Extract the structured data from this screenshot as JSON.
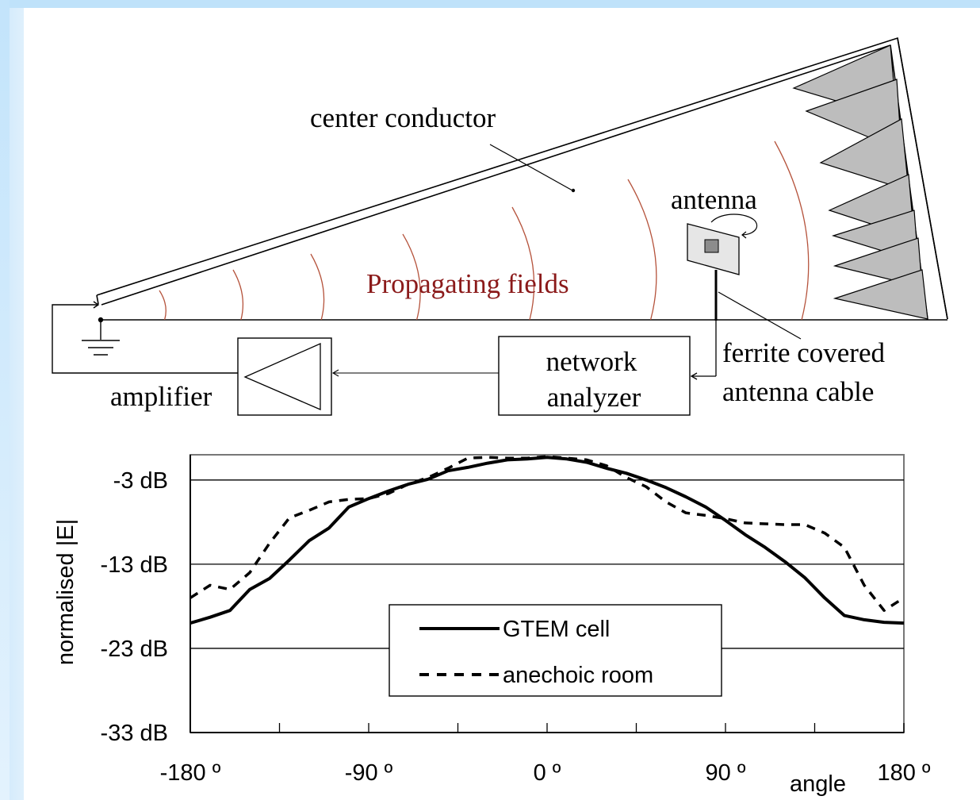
{
  "diagram": {
    "labels": {
      "center_conductor": "center conductor",
      "antenna": "antenna",
      "propagating_fields": "Propagating fields",
      "network_analyzer_line1": "network",
      "network_analyzer_line2": "analyzer",
      "amplifier": "amplifier",
      "ferrite_line1": "ferrite covered",
      "ferrite_line2": "antenna cable"
    },
    "colors": {
      "wavefront": "#b5533c",
      "propagating_text": "#8b1a1a",
      "absorber_fill": "#bdbdbd",
      "line": "#000000"
    }
  },
  "chart_data": {
    "type": "line",
    "xlabel": "angle",
    "ylabel": "normalised |E|",
    "xlim": [
      -180,
      180
    ],
    "ylim": [
      -33,
      0
    ],
    "x_ticks": [
      -180,
      -135,
      -90,
      -45,
      0,
      45,
      90,
      135,
      180
    ],
    "x_tick_labels": [
      "-180 º",
      "-90 º",
      "0 º",
      "90 º",
      "180 º"
    ],
    "x_tick_label_values": [
      -180,
      -90,
      0,
      90,
      180
    ],
    "y_ticks": [
      -3,
      -13,
      -23,
      -33
    ],
    "y_tick_labels": [
      "-3 dB",
      "-13 dB",
      "-23 dB",
      "-33 dB"
    ],
    "grid": true,
    "legend_position": "center-bottom",
    "series": [
      {
        "name": "GTEM cell",
        "style": "solid",
        "x": [
          -180,
          -170,
          -160,
          -150,
          -140,
          -130,
          -120,
          -110,
          -100,
          -90,
          -80,
          -70,
          -60,
          -50,
          -40,
          -30,
          -20,
          -10,
          0,
          10,
          20,
          30,
          40,
          50,
          60,
          70,
          80,
          90,
          100,
          110,
          120,
          130,
          140,
          150,
          160,
          170,
          180
        ],
        "y": [
          -20.0,
          -19.3,
          -18.5,
          -16.0,
          -14.7,
          -12.5,
          -10.2,
          -8.7,
          -6.2,
          -5.2,
          -4.3,
          -3.5,
          -2.9,
          -1.9,
          -1.5,
          -1.0,
          -0.6,
          -0.5,
          -0.3,
          -0.5,
          -0.9,
          -1.6,
          -2.2,
          -3.0,
          -3.9,
          -5.0,
          -6.2,
          -7.8,
          -9.5,
          -11.0,
          -12.7,
          -14.6,
          -17.0,
          -19.1,
          -19.6,
          -19.9,
          -20.0
        ]
      },
      {
        "name": "anechoic room",
        "style": "dashed",
        "x": [
          -180,
          -170,
          -160,
          -150,
          -140,
          -130,
          -120,
          -110,
          -100,
          -90,
          -80,
          -70,
          -60,
          -50,
          -40,
          -30,
          -20,
          -10,
          0,
          10,
          20,
          30,
          40,
          50,
          60,
          70,
          80,
          90,
          100,
          110,
          120,
          130,
          140,
          150,
          160,
          170,
          180
        ],
        "y": [
          -17.0,
          -15.5,
          -16.0,
          -14.0,
          -10.5,
          -7.5,
          -6.6,
          -5.6,
          -5.3,
          -5.2,
          -4.6,
          -3.5,
          -2.7,
          -1.6,
          -0.4,
          -0.3,
          -0.4,
          -0.4,
          -0.2,
          -0.4,
          -0.6,
          -1.3,
          -2.7,
          -3.8,
          -5.6,
          -6.9,
          -7.2,
          -7.6,
          -8.1,
          -8.2,
          -8.3,
          -8.3,
          -9.3,
          -11.0,
          -15.5,
          -18.5,
          -17.0
        ]
      }
    ]
  }
}
